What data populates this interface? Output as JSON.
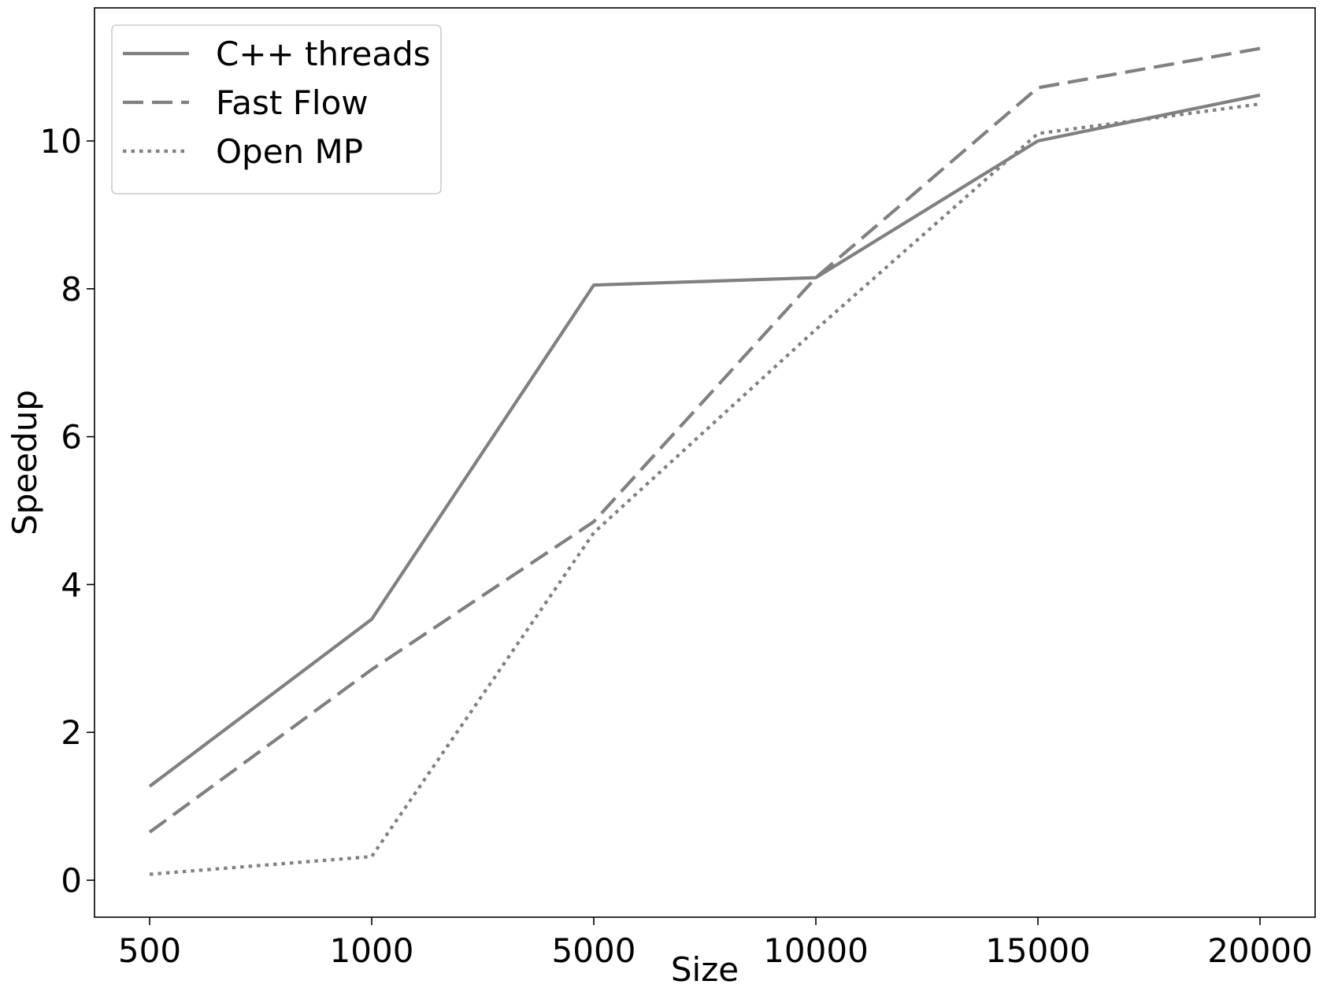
{
  "chart_data": {
    "type": "line",
    "title": "",
    "xlabel": "Size",
    "ylabel": "Speedup",
    "categories": [
      "500",
      "1000",
      "5000",
      "10000",
      "15000",
      "20000"
    ],
    "ylim": [
      -0.5,
      11.8
    ],
    "yticks": [
      "0",
      "2",
      "4",
      "6",
      "8",
      "10"
    ],
    "grid": false,
    "legend_position": "top-left",
    "series": [
      {
        "name": "C++ threads",
        "values": [
          1.27,
          3.53,
          8.05,
          8.15,
          10.0,
          10.62
        ],
        "style": "solid",
        "color": "#808080"
      },
      {
        "name": "Fast Flow",
        "values": [
          0.65,
          2.85,
          4.85,
          8.15,
          10.72,
          11.25
        ],
        "style": "dashed",
        "color": "#808080"
      },
      {
        "name": "Open MP",
        "values": [
          0.08,
          0.32,
          4.7,
          7.45,
          10.1,
          10.5
        ],
        "style": "dotted",
        "color": "#808080"
      }
    ]
  }
}
